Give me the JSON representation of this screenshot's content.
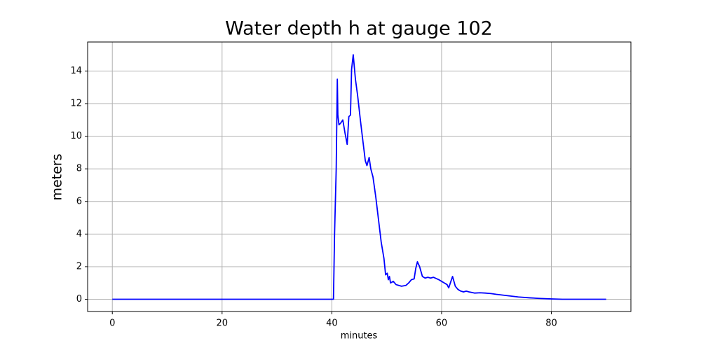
{
  "chart_data": {
    "type": "line",
    "title": "Water depth h at gauge 102",
    "x_label": "minutes",
    "y_label": "meters",
    "x": [
      0,
      40.3,
      40.5,
      40.8,
      41.0,
      41.1,
      41.3,
      41.6,
      42.0,
      42.4,
      42.8,
      43.1,
      43.4,
      43.6,
      43.9,
      44.3,
      44.7,
      45.2,
      45.7,
      46.1,
      46.4,
      46.8,
      47.1,
      47.5,
      48.0,
      48.5,
      49.0,
      49.5,
      49.8,
      50.1,
      50.3,
      50.5,
      50.7,
      51.2,
      51.7,
      52.2,
      52.7,
      53.5,
      54.0,
      54.5,
      55.0,
      55.3,
      55.6,
      56.0,
      56.5,
      57.0,
      57.5,
      58.0,
      58.5,
      59.5,
      60.5,
      61.0,
      61.3,
      61.7,
      62.0,
      62.5,
      63.0,
      63.5,
      64.0,
      64.5,
      65.0,
      66.0,
      67.0,
      68.0,
      69.0,
      70.0,
      72.0,
      74.0,
      76.0,
      78.0,
      80.0,
      82.0,
      90.0
    ],
    "series": [
      {
        "name": "h",
        "color": "#0000ff",
        "values": [
          0,
          0,
          4,
          8,
          13.5,
          11.3,
          10.7,
          10.8,
          11,
          10.2,
          9.5,
          11.2,
          11.3,
          14.1,
          15.0,
          13.5,
          12.5,
          11,
          9.6,
          8.5,
          8.2,
          8.7,
          8.0,
          7.5,
          6.3,
          4.9,
          3.5,
          2.5,
          1.5,
          1.6,
          1.2,
          1.4,
          1.0,
          1.1,
          0.9,
          0.85,
          0.8,
          0.85,
          1.0,
          1.2,
          1.25,
          1.9,
          2.3,
          2.0,
          1.4,
          1.3,
          1.35,
          1.3,
          1.35,
          1.2,
          1.0,
          0.9,
          0.7,
          1.1,
          1.4,
          0.8,
          0.6,
          0.5,
          0.45,
          0.5,
          0.45,
          0.38,
          0.4,
          0.38,
          0.35,
          0.3,
          0.22,
          0.14,
          0.09,
          0.05,
          0.02,
          0,
          0
        ]
      }
    ],
    "xlim": [
      -4.5,
      94.5
    ],
    "ylim": [
      -0.75,
      15.78
    ],
    "xticks": [
      0,
      20,
      40,
      60,
      80
    ],
    "yticks": [
      0,
      2,
      4,
      6,
      8,
      10,
      12,
      14
    ],
    "grid": true
  }
}
